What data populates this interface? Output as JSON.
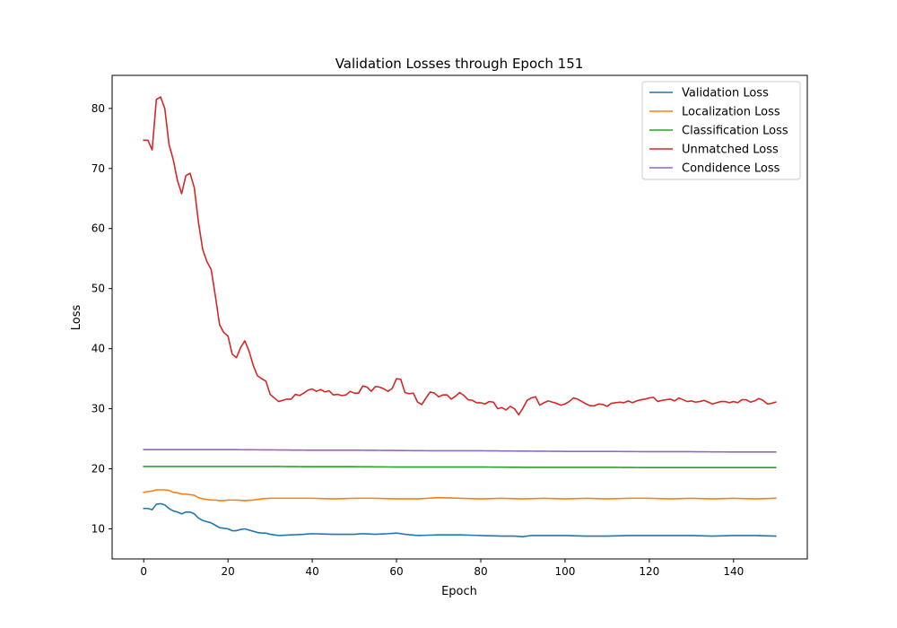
{
  "chart_data": {
    "type": "line",
    "title": "Validation Losses through Epoch 151",
    "xlabel": "Epoch",
    "ylabel": "Loss",
    "xlim": [
      -7.5,
      157.5
    ],
    "ylim": [
      5.0,
      85.5
    ],
    "xticks": [
      0,
      20,
      40,
      60,
      80,
      100,
      120,
      140
    ],
    "yticks": [
      10,
      20,
      30,
      40,
      50,
      60,
      70,
      80
    ],
    "grid": false,
    "legend_position": "top-right",
    "series": [
      {
        "name": "Validation Loss",
        "color": "#1f77b4",
        "anchors": [
          [
            0,
            13.4
          ],
          [
            1,
            13.4
          ],
          [
            2,
            13.2
          ],
          [
            3,
            14.1
          ],
          [
            4,
            14.2
          ],
          [
            5,
            14.0
          ],
          [
            6,
            13.4
          ],
          [
            7,
            13.0
          ],
          [
            8,
            12.8
          ],
          [
            9,
            12.5
          ],
          [
            10,
            12.8
          ],
          [
            11,
            12.8
          ],
          [
            12,
            12.5
          ],
          [
            13,
            11.8
          ],
          [
            14,
            11.4
          ],
          [
            15,
            11.2
          ],
          [
            16,
            11.0
          ],
          [
            17,
            10.6
          ],
          [
            18,
            10.2
          ],
          [
            19,
            10.1
          ],
          [
            20,
            10.0
          ],
          [
            21,
            9.7
          ],
          [
            22,
            9.7
          ],
          [
            23,
            9.9
          ],
          [
            24,
            10.0
          ],
          [
            25,
            9.8
          ],
          [
            26,
            9.6
          ],
          [
            27,
            9.4
          ],
          [
            28,
            9.3
          ],
          [
            29,
            9.3
          ],
          [
            30,
            9.1
          ],
          [
            31,
            9.0
          ],
          [
            32,
            8.9
          ],
          [
            35,
            9.0
          ],
          [
            38,
            9.1
          ],
          [
            40,
            9.2
          ],
          [
            45,
            9.1
          ],
          [
            50,
            9.1
          ],
          [
            52,
            9.2
          ],
          [
            55,
            9.1
          ],
          [
            58,
            9.2
          ],
          [
            60,
            9.3
          ],
          [
            62,
            9.1
          ],
          [
            65,
            8.9
          ],
          [
            70,
            9.0
          ],
          [
            75,
            9.0
          ],
          [
            80,
            8.9
          ],
          [
            85,
            8.8
          ],
          [
            88,
            8.8
          ],
          [
            90,
            8.7
          ],
          [
            92,
            8.9
          ],
          [
            95,
            8.9
          ],
          [
            100,
            8.9
          ],
          [
            105,
            8.8
          ],
          [
            110,
            8.8
          ],
          [
            115,
            8.9
          ],
          [
            120,
            8.9
          ],
          [
            125,
            8.9
          ],
          [
            130,
            8.9
          ],
          [
            135,
            8.8
          ],
          [
            140,
            8.9
          ],
          [
            145,
            8.9
          ],
          [
            150,
            8.8
          ]
        ]
      },
      {
        "name": "Localization Loss",
        "color": "#ff7f0e",
        "anchors": [
          [
            0,
            16.1
          ],
          [
            1,
            16.2
          ],
          [
            2,
            16.3
          ],
          [
            3,
            16.5
          ],
          [
            4,
            16.5
          ],
          [
            5,
            16.5
          ],
          [
            6,
            16.4
          ],
          [
            7,
            16.1
          ],
          [
            8,
            16.0
          ],
          [
            9,
            15.8
          ],
          [
            10,
            15.8
          ],
          [
            11,
            15.7
          ],
          [
            12,
            15.6
          ],
          [
            13,
            15.2
          ],
          [
            14,
            15.0
          ],
          [
            15,
            14.9
          ],
          [
            16,
            14.8
          ],
          [
            17,
            14.8
          ],
          [
            18,
            14.7
          ],
          [
            19,
            14.7
          ],
          [
            20,
            14.8
          ],
          [
            22,
            14.8
          ],
          [
            24,
            14.7
          ],
          [
            26,
            14.8
          ],
          [
            28,
            15.0
          ],
          [
            30,
            15.1
          ],
          [
            35,
            15.1
          ],
          [
            40,
            15.1
          ],
          [
            45,
            15.0
          ],
          [
            50,
            15.1
          ],
          [
            55,
            15.1
          ],
          [
            60,
            15.0
          ],
          [
            65,
            15.0
          ],
          [
            70,
            15.2
          ],
          [
            75,
            15.1
          ],
          [
            80,
            15.0
          ],
          [
            85,
            15.1
          ],
          [
            90,
            15.0
          ],
          [
            95,
            15.1
          ],
          [
            100,
            15.0
          ],
          [
            105,
            15.1
          ],
          [
            110,
            15.0
          ],
          [
            115,
            15.1
          ],
          [
            120,
            15.1
          ],
          [
            125,
            15.0
          ],
          [
            130,
            15.1
          ],
          [
            135,
            15.0
          ],
          [
            140,
            15.1
          ],
          [
            145,
            15.0
          ],
          [
            150,
            15.1
          ]
        ]
      },
      {
        "name": "Classification Loss",
        "color": "#2ca02c",
        "anchors": [
          [
            0,
            20.4
          ],
          [
            10,
            20.4
          ],
          [
            20,
            20.4
          ],
          [
            30,
            20.4
          ],
          [
            40,
            20.35
          ],
          [
            50,
            20.35
          ],
          [
            60,
            20.3
          ],
          [
            70,
            20.3
          ],
          [
            80,
            20.3
          ],
          [
            90,
            20.25
          ],
          [
            100,
            20.25
          ],
          [
            110,
            20.25
          ],
          [
            120,
            20.2
          ],
          [
            130,
            20.2
          ],
          [
            140,
            20.2
          ],
          [
            150,
            20.2
          ]
        ]
      },
      {
        "name": "Unmatched Loss",
        "color": "#d62728",
        "anchors": [
          [
            0,
            74.7
          ],
          [
            1,
            74.7
          ],
          [
            2,
            73.1
          ],
          [
            3,
            81.5
          ],
          [
            4,
            81.9
          ],
          [
            5,
            80.0
          ],
          [
            6,
            74.0
          ],
          [
            7,
            71.5
          ],
          [
            8,
            68.0
          ],
          [
            9,
            65.8
          ],
          [
            10,
            68.8
          ],
          [
            11,
            69.2
          ],
          [
            12,
            66.8
          ],
          [
            13,
            61.0
          ],
          [
            14,
            56.5
          ],
          [
            15,
            54.5
          ],
          [
            16,
            53.2
          ],
          [
            17,
            48.8
          ],
          [
            18,
            44.0
          ],
          [
            19,
            42.7
          ],
          [
            20,
            42.1
          ],
          [
            21,
            39.1
          ],
          [
            22,
            38.5
          ],
          [
            23,
            40.2
          ],
          [
            24,
            41.3
          ],
          [
            25,
            39.6
          ],
          [
            26,
            37.2
          ],
          [
            27,
            35.5
          ],
          [
            28,
            35.0
          ],
          [
            29,
            34.6
          ],
          [
            30,
            32.4
          ],
          [
            31,
            31.8
          ],
          [
            32,
            31.2
          ],
          [
            33,
            31.4
          ],
          [
            34,
            31.6
          ],
          [
            35,
            31.6
          ],
          [
            36,
            32.4
          ],
          [
            37,
            32.2
          ],
          [
            38,
            32.6
          ],
          [
            39,
            33.1
          ],
          [
            40,
            33.3
          ],
          [
            41,
            32.9
          ],
          [
            42,
            33.2
          ],
          [
            43,
            32.8
          ],
          [
            44,
            33.0
          ],
          [
            45,
            32.3
          ],
          [
            46,
            32.4
          ],
          [
            47,
            32.2
          ],
          [
            48,
            32.3
          ],
          [
            49,
            32.9
          ],
          [
            50,
            32.6
          ],
          [
            51,
            32.6
          ],
          [
            52,
            33.8
          ],
          [
            53,
            33.6
          ],
          [
            54,
            32.9
          ],
          [
            55,
            33.7
          ],
          [
            56,
            33.6
          ],
          [
            57,
            33.3
          ],
          [
            58,
            32.9
          ],
          [
            59,
            33.4
          ],
          [
            60,
            35.0
          ],
          [
            61,
            34.9
          ],
          [
            62,
            32.7
          ],
          [
            63,
            32.5
          ],
          [
            64,
            32.6
          ],
          [
            65,
            31.1
          ],
          [
            66,
            30.7
          ],
          [
            67,
            31.8
          ],
          [
            68,
            32.8
          ],
          [
            69,
            32.6
          ],
          [
            70,
            32.0
          ],
          [
            71,
            32.3
          ],
          [
            72,
            32.3
          ],
          [
            73,
            31.6
          ],
          [
            74,
            32.1
          ],
          [
            75,
            32.7
          ],
          [
            76,
            32.2
          ],
          [
            77,
            31.5
          ],
          [
            78,
            31.4
          ],
          [
            79,
            31.0
          ],
          [
            80,
            31.0
          ],
          [
            81,
            30.8
          ],
          [
            82,
            31.2
          ],
          [
            83,
            31.1
          ],
          [
            84,
            30.0
          ],
          [
            85,
            30.2
          ],
          [
            86,
            29.8
          ],
          [
            87,
            30.4
          ],
          [
            88,
            30.0
          ],
          [
            89,
            29.0
          ],
          [
            90,
            30.1
          ],
          [
            91,
            31.4
          ],
          [
            92,
            31.8
          ],
          [
            93,
            32.0
          ],
          [
            94,
            30.6
          ],
          [
            95,
            31.0
          ],
          [
            96,
            31.3
          ],
          [
            97,
            31.1
          ],
          [
            98,
            30.9
          ],
          [
            99,
            30.6
          ],
          [
            100,
            30.8
          ],
          [
            101,
            31.2
          ],
          [
            102,
            31.8
          ],
          [
            103,
            31.6
          ],
          [
            104,
            31.2
          ],
          [
            105,
            30.8
          ],
          [
            106,
            30.5
          ],
          [
            107,
            30.5
          ],
          [
            108,
            30.8
          ],
          [
            109,
            30.7
          ],
          [
            110,
            30.4
          ],
          [
            111,
            30.9
          ],
          [
            112,
            31.0
          ],
          [
            113,
            31.1
          ],
          [
            114,
            31.0
          ],
          [
            115,
            31.3
          ],
          [
            116,
            31.0
          ],
          [
            117,
            31.3
          ],
          [
            118,
            31.5
          ],
          [
            119,
            31.6
          ],
          [
            120,
            31.8
          ],
          [
            121,
            31.9
          ],
          [
            122,
            31.2
          ],
          [
            123,
            31.4
          ],
          [
            124,
            31.5
          ],
          [
            125,
            31.6
          ],
          [
            126,
            31.3
          ],
          [
            127,
            31.8
          ],
          [
            128,
            31.5
          ],
          [
            129,
            31.2
          ],
          [
            130,
            31.3
          ],
          [
            131,
            31.1
          ],
          [
            132,
            31.2
          ],
          [
            133,
            31.4
          ],
          [
            134,
            31.1
          ],
          [
            135,
            30.8
          ],
          [
            136,
            31.0
          ],
          [
            137,
            31.2
          ],
          [
            138,
            31.2
          ],
          [
            139,
            31.0
          ],
          [
            140,
            31.2
          ],
          [
            141,
            31.0
          ],
          [
            142,
            31.5
          ],
          [
            143,
            31.5
          ],
          [
            144,
            31.1
          ],
          [
            145,
            31.3
          ],
          [
            146,
            31.7
          ],
          [
            147,
            31.4
          ],
          [
            148,
            30.8
          ],
          [
            149,
            30.9
          ],
          [
            150,
            31.1
          ]
        ]
      },
      {
        "name": "Condidence Loss",
        "color": "#9467bd",
        "anchors": [
          [
            0,
            23.2
          ],
          [
            10,
            23.2
          ],
          [
            20,
            23.2
          ],
          [
            30,
            23.15
          ],
          [
            40,
            23.1
          ],
          [
            50,
            23.1
          ],
          [
            60,
            23.05
          ],
          [
            70,
            23.0
          ],
          [
            80,
            23.0
          ],
          [
            90,
            22.95
          ],
          [
            100,
            22.9
          ],
          [
            110,
            22.9
          ],
          [
            120,
            22.85
          ],
          [
            130,
            22.85
          ],
          [
            140,
            22.8
          ],
          [
            150,
            22.8
          ]
        ]
      }
    ]
  }
}
